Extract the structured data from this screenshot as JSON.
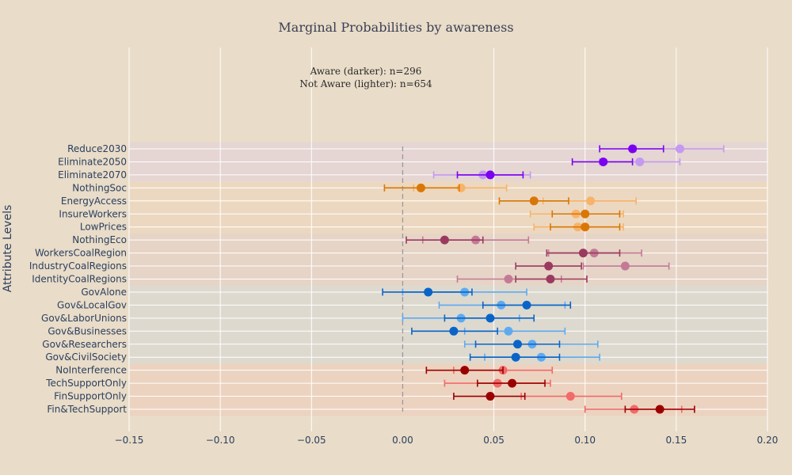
{
  "chart_data": {
    "type": "scatter",
    "title": "Marginal Probabilities by awareness",
    "ylabel": "Attribute Levels",
    "xlabel": "",
    "xlim": [
      -0.15,
      0.2
    ],
    "xticks": [
      -0.15,
      -0.1,
      -0.05,
      0.0,
      0.05,
      0.1,
      0.15,
      0.2
    ],
    "xtick_labels": [
      "−0.15",
      "−0.10",
      "−0.05",
      "0.00",
      "0.05",
      "0.10",
      "0.15",
      "0.20"
    ],
    "reference_line_x": 0,
    "grid": true,
    "annotation": [
      "Aware (darker): n=296",
      "Not Aware (lighter): n=654"
    ],
    "categories": [
      "Reduce2030",
      "Eliminate2050",
      "Eliminate2070",
      "NothingSoc",
      "EnergyAccess",
      "InsureWorkers",
      "LowPrices",
      "NothingEco",
      "WorkersCoalRegion",
      "IndustryCoalRegions",
      "IdentityCoalRegions",
      "GovAlone",
      "Gov&LocalGov",
      "Gov&LaborUnions",
      "Gov&Businesses",
      "Gov&Researchers",
      "Gov&CivilSociety",
      "NoInterference",
      "TechSupportOnly",
      "FinSupportOnly",
      "Fin&TechSupport"
    ],
    "groups": [
      {
        "levels": [
          "Reduce2030",
          "Eliminate2050",
          "Eliminate2070"
        ],
        "band_color": "#e5d5d3",
        "aware_color": "#7a00f0",
        "not_aware_color": "#c39af0"
      },
      {
        "levels": [
          "NothingSoc",
          "EnergyAccess",
          "InsureWorkers",
          "LowPrices"
        ],
        "band_color": "#ecd8c0",
        "aware_color": "#d97706",
        "not_aware_color": "#f8b36a"
      },
      {
        "levels": [
          "NothingEco",
          "WorkersCoalRegion",
          "IndustryCoalRegions",
          "IdentityCoalRegions"
        ],
        "band_color": "#e6d4c7",
        "aware_color": "#9b3a5e",
        "not_aware_color": "#c47a96"
      },
      {
        "levels": [
          "GovAlone",
          "Gov&LocalGov",
          "Gov&LaborUnions",
          "Gov&Businesses",
          "Gov&Researchers",
          "Gov&CivilSociety"
        ],
        "band_color": "#ddd9cf",
        "aware_color": "#0a64c8",
        "not_aware_color": "#5eaaf0"
      },
      {
        "levels": [
          "NoInterference",
          "TechSupportOnly",
          "FinSupportOnly",
          "Fin&TechSupport"
        ],
        "band_color": "#ecd3c0",
        "aware_color": "#9b0000",
        "not_aware_color": "#f26a6a"
      }
    ],
    "series": [
      {
        "name": "Aware (darker)",
        "estimates": [
          0.126,
          0.11,
          0.048,
          0.01,
          0.072,
          0.1,
          0.1,
          0.023,
          0.099,
          0.08,
          0.081,
          0.014,
          0.068,
          0.048,
          0.028,
          0.063,
          0.062,
          0.034,
          0.06,
          0.048,
          0.141
        ],
        "ci_low": [
          0.108,
          0.093,
          0.03,
          -0.01,
          0.053,
          0.082,
          0.081,
          0.002,
          0.079,
          0.062,
          0.062,
          -0.011,
          0.044,
          0.023,
          0.005,
          0.04,
          0.037,
          0.013,
          0.041,
          0.028,
          0.122
        ],
        "ci_high": [
          0.143,
          0.126,
          0.066,
          0.031,
          0.091,
          0.119,
          0.119,
          0.044,
          0.119,
          0.098,
          0.101,
          0.038,
          0.092,
          0.072,
          0.052,
          0.086,
          0.086,
          0.055,
          0.078,
          0.067,
          0.16
        ]
      },
      {
        "name": "Not Aware (lighter)",
        "estimates": [
          0.152,
          0.13,
          0.044,
          0.032,
          0.103,
          0.095,
          0.096,
          0.04,
          0.105,
          0.122,
          0.058,
          0.034,
          0.054,
          0.032,
          0.058,
          0.071,
          0.076,
          0.055,
          0.052,
          0.092,
          0.127
        ],
        "ci_low": [
          0.128,
          0.108,
          0.017,
          0.006,
          0.077,
          0.07,
          0.072,
          0.011,
          0.08,
          0.099,
          0.03,
          0.0,
          0.02,
          0.0,
          0.034,
          0.034,
          0.045,
          0.028,
          0.023,
          0.065,
          0.1
        ],
        "ci_high": [
          0.176,
          0.152,
          0.07,
          0.057,
          0.128,
          0.121,
          0.121,
          0.069,
          0.131,
          0.146,
          0.087,
          0.068,
          0.089,
          0.064,
          0.089,
          0.107,
          0.108,
          0.082,
          0.081,
          0.12,
          0.153
        ]
      }
    ]
  }
}
